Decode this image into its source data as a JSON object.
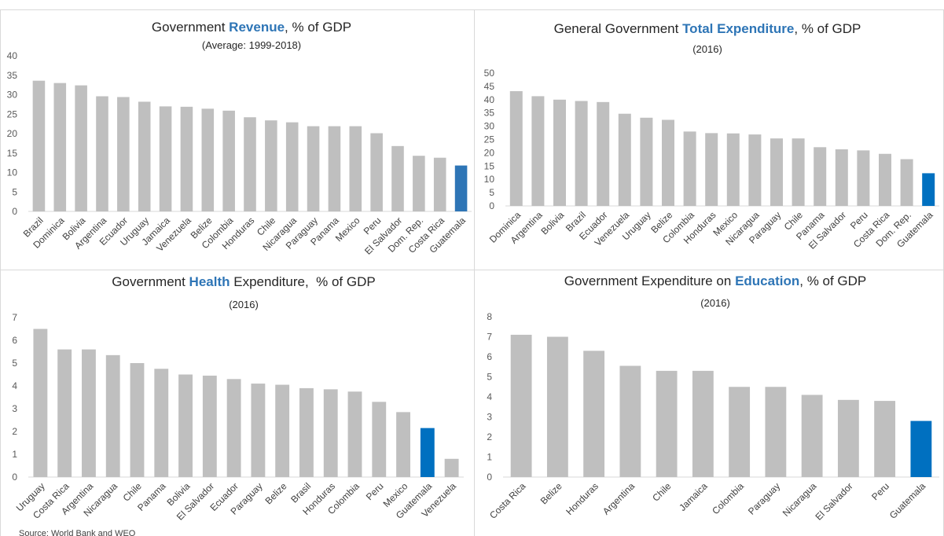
{
  "chart_data": [
    {
      "type": "bar",
      "title": [
        {
          "text": "Government "
        },
        {
          "text": "Revenue",
          "bold": true,
          "color": "#2e75b6"
        },
        {
          "text": ", % of GDP"
        }
      ],
      "subtitle": "(Average: 1999-2018)",
      "categories": [
        "Brazil",
        "Dominica",
        "Bolivia",
        "Argentina",
        "Ecuador",
        "Uruguay",
        "Jamaica",
        "Venezuela",
        "Belize",
        "Colombia",
        "Honduras",
        "Chile",
        "Nicaragua",
        "Paraguay",
        "Panama",
        "Mexico",
        "Peru",
        "El Salvador",
        "Dom. Rep.",
        "Costa Rica",
        "Guatemala"
      ],
      "values": [
        33.6,
        33,
        32.4,
        29.6,
        29.4,
        28.2,
        27,
        26.9,
        26.4,
        25.9,
        24.2,
        23.4,
        22.9,
        21.9,
        21.9,
        21.9,
        20.1,
        16.8,
        14.3,
        13.8,
        11.8
      ],
      "colors": [
        "#bfbfbf",
        "#bfbfbf",
        "#bfbfbf",
        "#bfbfbf",
        "#bfbfbf",
        "#bfbfbf",
        "#bfbfbf",
        "#bfbfbf",
        "#bfbfbf",
        "#bfbfbf",
        "#bfbfbf",
        "#bfbfbf",
        "#bfbfbf",
        "#bfbfbf",
        "#bfbfbf",
        "#bfbfbf",
        "#bfbfbf",
        "#bfbfbf",
        "#bfbfbf",
        "#bfbfbf",
        "#2e75b6"
      ],
      "ylim": [
        0,
        40
      ],
      "yticks": [
        0,
        5,
        10,
        15,
        20,
        25,
        30,
        35,
        40
      ]
    },
    {
      "type": "bar",
      "title": [
        {
          "text": "General Government "
        },
        {
          "text": "Total Expenditure",
          "bold": true,
          "color": "#2e75b6"
        },
        {
          "text": ", % of GDP"
        }
      ],
      "subtitle": "(2016)",
      "categories": [
        "Dominica",
        "Argentina",
        "Bolivia",
        "Brazil",
        "Ecuador",
        "Venezuela",
        "Uruguay",
        "Belize",
        "Colombia",
        "Honduras",
        "Mexico",
        "Nicaragua",
        "Paraguay",
        "Chile",
        "Panama",
        "El Salvador",
        "Peru",
        "Costa Rica",
        "Dom. Rep.",
        "Guatemala"
      ],
      "values": [
        43.2,
        41.3,
        40,
        39.5,
        39.1,
        34.7,
        33.2,
        32.4,
        28,
        27.4,
        27.3,
        26.9,
        25.4,
        25.4,
        22.1,
        21.3,
        20.9,
        19.6,
        17.6,
        12.3
      ],
      "colors": [
        "#bfbfbf",
        "#bfbfbf",
        "#bfbfbf",
        "#bfbfbf",
        "#bfbfbf",
        "#bfbfbf",
        "#bfbfbf",
        "#bfbfbf",
        "#bfbfbf",
        "#bfbfbf",
        "#bfbfbf",
        "#bfbfbf",
        "#bfbfbf",
        "#bfbfbf",
        "#bfbfbf",
        "#bfbfbf",
        "#bfbfbf",
        "#bfbfbf",
        "#bfbfbf",
        "#0070c0"
      ],
      "ylim": [
        0,
        50
      ],
      "yticks": [
        0,
        5,
        10,
        15,
        20,
        25,
        30,
        35,
        40,
        45,
        50
      ]
    },
    {
      "type": "bar",
      "title": [
        {
          "text": "Government "
        },
        {
          "text": "Health",
          "bold": true,
          "color": "#2e75b6"
        },
        {
          "text": " Expenditure,  % of GDP"
        }
      ],
      "subtitle": "(2016)",
      "categories": [
        "Uruguay",
        "Costa Rica",
        "Argentina",
        "Nicaragua",
        "Chile",
        "Panama",
        "Bolivia",
        "El Salvador",
        "Ecuador",
        "Paraguay",
        "Belize",
        "Brasil",
        "Honduras",
        "Colombia",
        "Peru",
        "Mexico",
        "Guatemala",
        "Venezuela"
      ],
      "values": [
        6.5,
        5.6,
        5.6,
        5.35,
        5,
        4.75,
        4.5,
        4.45,
        4.3,
        4.1,
        4.05,
        3.9,
        3.85,
        3.75,
        3.3,
        2.85,
        2.15,
        0.8
      ],
      "colors": [
        "#bfbfbf",
        "#bfbfbf",
        "#bfbfbf",
        "#bfbfbf",
        "#bfbfbf",
        "#bfbfbf",
        "#bfbfbf",
        "#bfbfbf",
        "#bfbfbf",
        "#bfbfbf",
        "#bfbfbf",
        "#bfbfbf",
        "#bfbfbf",
        "#bfbfbf",
        "#bfbfbf",
        "#bfbfbf",
        "#0070c0",
        "#bfbfbf"
      ],
      "ylim": [
        0,
        7
      ],
      "yticks": [
        0,
        1,
        2,
        3,
        4,
        5,
        6,
        7
      ]
    },
    {
      "type": "bar",
      "title": [
        {
          "text": "Government Expenditure on "
        },
        {
          "text": "Education",
          "bold": true,
          "color": "#2e75b6"
        },
        {
          "text": ", % of GDP"
        }
      ],
      "subtitle": "(2016)",
      "categories": [
        "Costa Rica",
        "Belize",
        "Honduras",
        "Argentina",
        "Chile",
        "Jamaica",
        "Colombia",
        "Paraguay",
        "Nicaragua",
        "El Salvador",
        "Peru",
        "Guatemala"
      ],
      "values": [
        7.1,
        7,
        6.3,
        5.55,
        5.3,
        5.3,
        4.5,
        4.5,
        4.1,
        3.85,
        3.8,
        2.8
      ],
      "colors": [
        "#bfbfbf",
        "#bfbfbf",
        "#bfbfbf",
        "#bfbfbf",
        "#bfbfbf",
        "#bfbfbf",
        "#bfbfbf",
        "#bfbfbf",
        "#bfbfbf",
        "#bfbfbf",
        "#bfbfbf",
        "#0070c0"
      ],
      "ylim": [
        0,
        8
      ],
      "yticks": [
        0,
        1,
        2,
        3,
        4,
        5,
        6,
        7,
        8
      ]
    }
  ],
  "source": "Source: World Bank and WEO"
}
